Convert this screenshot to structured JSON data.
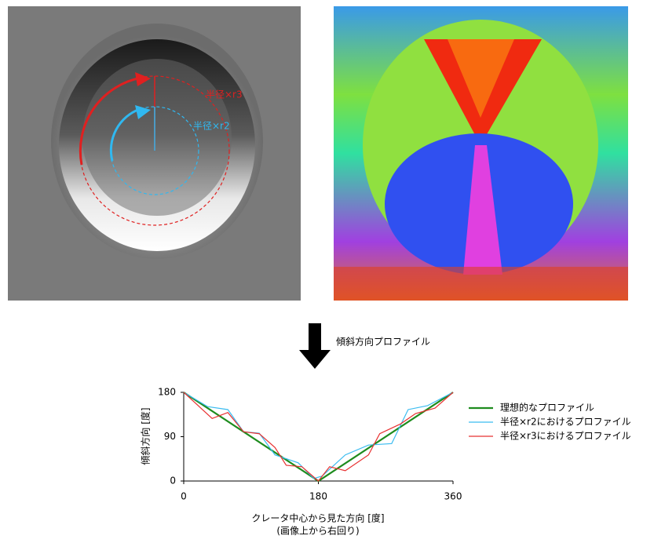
{
  "figure": {
    "arrow_label": "傾斜方向プロファイル",
    "image_labels": [
      "半径×r3",
      "半径×r2"
    ]
  },
  "chart_data": {
    "type": "line",
    "xlabel": "クレータ中心から見た方向 [度]",
    "xlabel_note": "(画像上から右回り)",
    "ylabel": "傾斜方向 [度]",
    "xlim": [
      0,
      360
    ],
    "xticks": [
      0,
      180,
      360
    ],
    "ylim": [
      0,
      180
    ],
    "yticks": [
      0,
      90,
      180
    ],
    "legend": "right",
    "series": [
      {
        "name": "理想的なプロファイル",
        "color": "#1e8c1e",
        "x": [
          0,
          180,
          360
        ],
        "values": [
          180,
          0,
          180
        ]
      },
      {
        "name": "半径×r2におけるプロファイル",
        "color": "#3bbcf0",
        "x": [
          0,
          32,
          59,
          80,
          101,
          122,
          153,
          174,
          185,
          216,
          247,
          278,
          300,
          326,
          360
        ],
        "values": [
          180,
          151,
          145,
          100,
          97,
          53,
          37,
          5,
          10,
          53,
          73,
          76,
          145,
          153,
          180
        ]
      },
      {
        "name": "半径×r3におけるプロファイル",
        "color": "#e83030",
        "x": [
          0,
          38,
          59,
          80,
          101,
          122,
          137,
          158,
          180,
          195,
          216,
          247,
          262,
          290,
          310,
          336,
          360
        ],
        "values": [
          180,
          127,
          139,
          100,
          96,
          68,
          32,
          29,
          0,
          29,
          21,
          53,
          96,
          116,
          137,
          148,
          180
        ]
      }
    ]
  }
}
